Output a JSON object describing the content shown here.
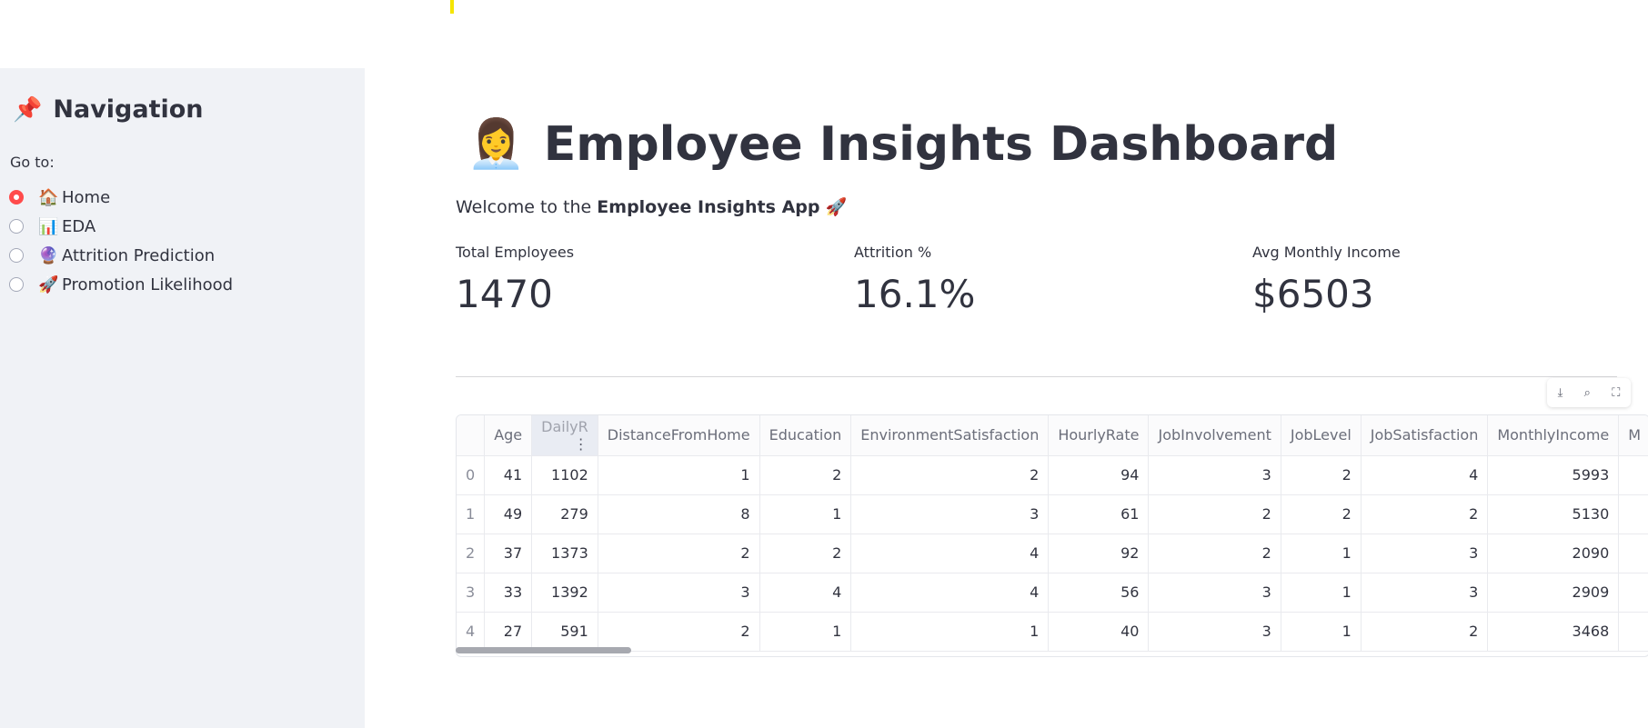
{
  "sidebar": {
    "title_icon": "📌",
    "title": "Navigation",
    "goto_label": "Go to:",
    "options": [
      {
        "icon": "🏠",
        "label": "Home",
        "checked": true
      },
      {
        "icon": "📊",
        "label": "EDA",
        "checked": false
      },
      {
        "icon": "🔮",
        "label": "Attrition Prediction",
        "checked": false
      },
      {
        "icon": "🚀",
        "label": "Promotion Likelihood",
        "checked": false
      }
    ]
  },
  "header": {
    "title_icon": "👩‍💼",
    "title": "Employee Insights Dashboard",
    "welcome_prefix": "Welcome to the ",
    "welcome_bold": "Employee Insights App",
    "welcome_icon": "🚀"
  },
  "metrics": [
    {
      "label": "Total Employees",
      "value": "1470"
    },
    {
      "label": "Attrition %",
      "value": "16.1%"
    },
    {
      "label": "Avg Monthly Income",
      "value": "$6503"
    }
  ],
  "toolbar": {
    "icons": [
      "download-icon",
      "search-icon",
      "fullscreen-icon"
    ]
  },
  "table": {
    "columns": [
      "",
      "Age",
      "DailyR",
      "DistanceFromHome",
      "Education",
      "EnvironmentSatisfaction",
      "HourlyRate",
      "JobInvolvement",
      "JobLevel",
      "JobSatisfaction",
      "MonthlyIncome",
      "M"
    ],
    "rows": [
      [
        "0",
        "41",
        "1102",
        "1",
        "2",
        "2",
        "94",
        "3",
        "2",
        "4",
        "5993",
        ""
      ],
      [
        "1",
        "49",
        "279",
        "8",
        "1",
        "3",
        "61",
        "2",
        "2",
        "2",
        "5130",
        ""
      ],
      [
        "2",
        "37",
        "1373",
        "2",
        "2",
        "4",
        "92",
        "2",
        "1",
        "3",
        "2090",
        ""
      ],
      [
        "3",
        "33",
        "1392",
        "3",
        "4",
        "4",
        "56",
        "3",
        "1",
        "3",
        "2909",
        ""
      ],
      [
        "4",
        "27",
        "591",
        "2",
        "1",
        "1",
        "40",
        "3",
        "1",
        "2",
        "3468",
        ""
      ]
    ]
  }
}
